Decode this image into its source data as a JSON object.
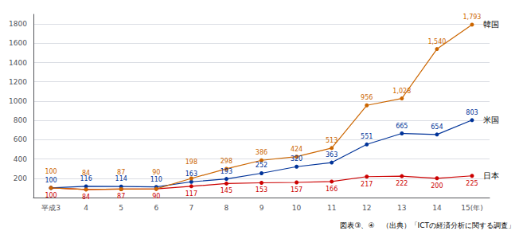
{
  "chart_data": {
    "type": "line",
    "categories": [
      "平成3",
      "4",
      "5",
      "6",
      "7",
      "8",
      "9",
      "10",
      "11",
      "12",
      "13",
      "14",
      "15(年)"
    ],
    "series": [
      {
        "name": "日本",
        "color": "#cc0000",
        "values": [
          100,
          84,
          87,
          90,
          117,
          145,
          153,
          157,
          166,
          217,
          222,
          200,
          225
        ]
      },
      {
        "name": "米国",
        "color": "#003399",
        "values": [
          100,
          116,
          114,
          110,
          163,
          193,
          252,
          320,
          363,
          551,
          665,
          654,
          803
        ]
      },
      {
        "name": "韓国",
        "color": "#cc6600",
        "values": [
          100,
          84,
          87,
          90,
          198,
          298,
          386,
          424,
          513,
          956,
          1028,
          1540,
          1793
        ],
        "value_labels": [
          "100",
          "84",
          "87",
          "90",
          "198",
          "298",
          "386",
          "424",
          "513",
          "956",
          "1,028",
          "1,540",
          "1,793"
        ]
      }
    ],
    "ylim": [
      0,
      1900
    ],
    "yticks": [
      200,
      400,
      600,
      800,
      1000,
      1200,
      1400,
      1600,
      1800
    ],
    "grid": true,
    "data_labels": true,
    "marker": "circle",
    "footer": "図表③、④　（出典）「ICTの経済分析に関する調査」"
  }
}
